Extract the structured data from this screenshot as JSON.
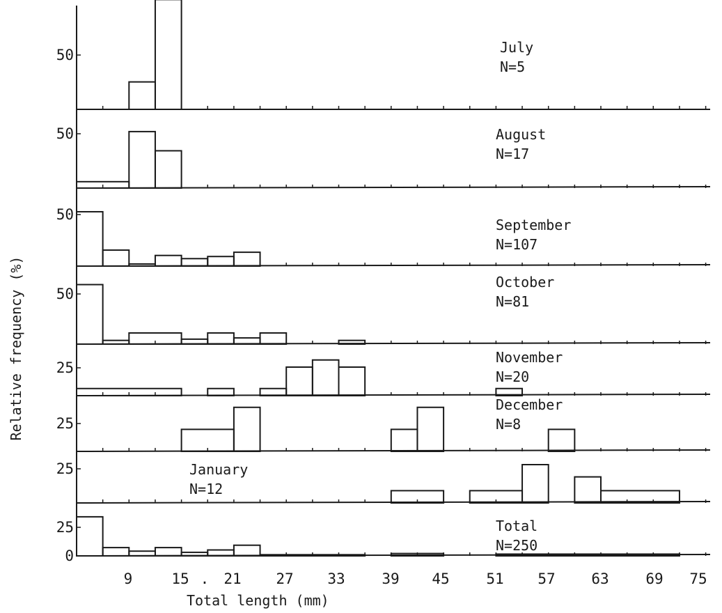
{
  "chart_data": {
    "type": "bar",
    "xlabel": "Total length (mm)",
    "ylabel": "Relative frequency (%)",
    "x_ticks": [
      "9",
      "15",
      ".",
      "21",
      "27",
      "33",
      "39",
      "45",
      "51",
      "57",
      "63",
      "69",
      "75"
    ],
    "bin_width_mm": 3,
    "panels": [
      {
        "month": "July",
        "n_label": "N=5",
        "y_tick": "50",
        "bins": [
          {
            "x0": 9,
            "x1": 12,
            "v": 20
          },
          {
            "x0": 12,
            "x1": 15,
            "v": 80
          }
        ]
      },
      {
        "month": "August",
        "n_label": "N=17",
        "y_tick": "50",
        "bins": [
          {
            "x0": 3,
            "x1": 9,
            "v": 6
          },
          {
            "x0": 9,
            "x1": 12,
            "v": 53
          },
          {
            "x0": 12,
            "x1": 15,
            "v": 35
          }
        ]
      },
      {
        "month": "September",
        "n_label": "N=107",
        "y_tick": "50",
        "bins": [
          {
            "x0": 3,
            "x1": 6,
            "v": 51
          },
          {
            "x0": 6,
            "x1": 9,
            "v": 15
          },
          {
            "x0": 9,
            "x1": 12,
            "v": 2
          },
          {
            "x0": 12,
            "x1": 15,
            "v": 10
          },
          {
            "x0": 15,
            "x1": 18,
            "v": 7
          },
          {
            "x0": 18,
            "x1": 21,
            "v": 9
          },
          {
            "x0": 21,
            "x1": 24,
            "v": 13
          }
        ]
      },
      {
        "month": "October",
        "n_label": "N=81",
        "y_tick": "50",
        "bins": [
          {
            "x0": 3,
            "x1": 6,
            "v": 48
          },
          {
            "x0": 6,
            "x1": 9,
            "v": 3
          },
          {
            "x0": 9,
            "x1": 15,
            "v": 9
          },
          {
            "x0": 15,
            "x1": 18,
            "v": 4
          },
          {
            "x0": 18,
            "x1": 21,
            "v": 9
          },
          {
            "x0": 21,
            "x1": 24,
            "v": 5
          },
          {
            "x0": 24,
            "x1": 27,
            "v": 9
          },
          {
            "x0": 33,
            "x1": 36,
            "v": 3
          }
        ]
      },
      {
        "month": "November",
        "n_label": "N=20",
        "y_tick": "25",
        "bins": [
          {
            "x0": 3,
            "x1": 15,
            "v": 5
          },
          {
            "x0": 18,
            "x1": 21,
            "v": 5
          },
          {
            "x0": 24,
            "x1": 27,
            "v": 5
          },
          {
            "x0": 27,
            "x1": 30,
            "v": 20
          },
          {
            "x0": 30,
            "x1": 33,
            "v": 25
          },
          {
            "x0": 33,
            "x1": 36,
            "v": 20
          },
          {
            "x0": 51,
            "x1": 54,
            "v": 5
          }
        ]
      },
      {
        "month": "December",
        "n_label": "N=8",
        "y_tick": "25",
        "bins": [
          {
            "x0": 15,
            "x1": 21,
            "v": 12.5
          },
          {
            "x0": 21,
            "x1": 24,
            "v": 25
          },
          {
            "x0": 39,
            "x1": 42,
            "v": 12.5
          },
          {
            "x0": 42,
            "x1": 45,
            "v": 25
          },
          {
            "x0": 57,
            "x1": 60,
            "v": 12.5
          }
        ]
      },
      {
        "month": "January",
        "n_label": "N=12",
        "y_tick": "25",
        "bins": [
          {
            "x0": 39,
            "x1": 45,
            "v": 8
          },
          {
            "x0": 48,
            "x1": 54,
            "v": 8
          },
          {
            "x0": 54,
            "x1": 57,
            "v": 25
          },
          {
            "x0": 60,
            "x1": 63,
            "v": 17
          },
          {
            "x0": 63,
            "x1": 72,
            "v": 8
          }
        ]
      },
      {
        "month": "Total",
        "n_label": "N=250",
        "y_tick": "25",
        "y_tick_zero": "0",
        "bins": [
          {
            "x0": 3,
            "x1": 6,
            "v": 33
          },
          {
            "x0": 6,
            "x1": 9,
            "v": 7
          },
          {
            "x0": 9,
            "x1": 12,
            "v": 4
          },
          {
            "x0": 12,
            "x1": 15,
            "v": 7
          },
          {
            "x0": 15,
            "x1": 18,
            "v": 3
          },
          {
            "x0": 18,
            "x1": 21,
            "v": 5
          },
          {
            "x0": 21,
            "x1": 24,
            "v": 9
          },
          {
            "x0": 24,
            "x1": 36,
            "v": 1
          },
          {
            "x0": 39,
            "x1": 45,
            "v": 2
          },
          {
            "x0": 51,
            "x1": 72,
            "v": 1.5
          }
        ]
      }
    ]
  }
}
